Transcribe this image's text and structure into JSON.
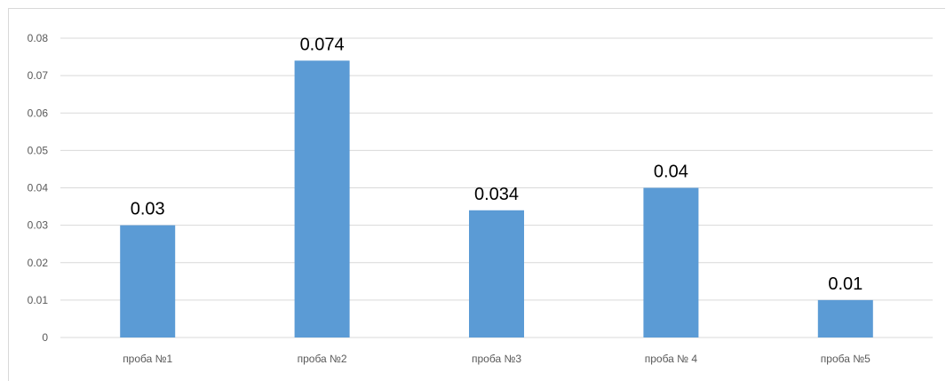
{
  "chart_data": {
    "type": "bar",
    "title": "",
    "xlabel": "",
    "ylabel": "",
    "categories": [
      "проба №1",
      "проба №2",
      "проба №3",
      "проба № 4",
      "проба №5"
    ],
    "values": [
      0.03,
      0.074,
      0.034,
      0.04,
      0.01
    ],
    "data_labels": [
      "0.03",
      "0.074",
      "0.034",
      "0.04",
      "0.01"
    ],
    "yticks": [
      "0",
      "0.01",
      "0.02",
      "0.03",
      "0.04",
      "0.05",
      "0.06",
      "0.07",
      "0.08"
    ],
    "ylim": [
      0,
      0.08
    ],
    "grid": true,
    "legend": "none",
    "bar_color": "#5B9BD5",
    "grid_color": "#D9D9D9"
  }
}
